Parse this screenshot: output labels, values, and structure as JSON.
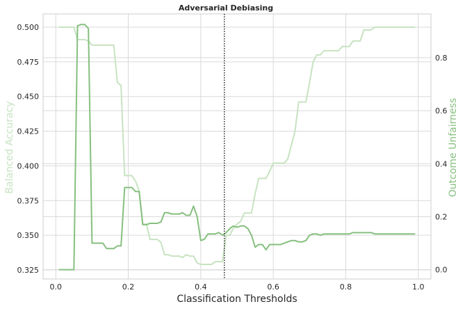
{
  "chart_data": {
    "type": "line",
    "title": "Adversarial Debiasing",
    "xlabel": "Classification Thresholds",
    "ylabel_left": "Balanced Accuracy",
    "ylabel_right": "Outcome Unfairness",
    "xlim": [
      -0.035,
      1.035
    ],
    "ylim_left": [
      0.3185,
      0.5095
    ],
    "ylim_right": [
      -0.035,
      0.965
    ],
    "xticks": [
      0.0,
      0.2,
      0.4,
      0.6,
      0.8,
      1.0
    ],
    "xtick_labels": [
      "0.0",
      "0.2",
      "0.4",
      "0.6",
      "0.8",
      "1.0"
    ],
    "yticks_left": [
      0.325,
      0.35,
      0.375,
      0.4,
      0.425,
      0.45,
      0.475,
      0.5
    ],
    "ytick_labels_left": [
      "0.325",
      "0.350",
      "0.375",
      "0.400",
      "0.425",
      "0.450",
      "0.475",
      "0.500"
    ],
    "yticks_right": [
      0.0,
      0.2,
      0.4,
      0.6,
      0.8
    ],
    "ytick_labels_right": [
      "0.0",
      "0.2",
      "0.4",
      "0.6",
      "0.8"
    ],
    "grid": true,
    "threshold_marker": 0.465,
    "colors": {
      "balanced_accuracy": "#c7e3c1",
      "outcome_unfairness": "#86bf7f",
      "marker": "#262626",
      "grid": "#d9d9d9",
      "frame": "#cccccc",
      "text": "#262626"
    },
    "series": [
      {
        "axis": "left",
        "x": [
          0.01,
          0.02,
          0.03,
          0.04,
          0.05,
          0.06,
          0.07,
          0.08,
          0.09,
          0.1,
          0.11,
          0.12,
          0.13,
          0.14,
          0.15,
          0.16,
          0.17,
          0.18,
          0.19,
          0.2,
          0.21,
          0.22,
          0.23,
          0.24,
          0.25,
          0.26,
          0.27,
          0.28,
          0.29,
          0.3,
          0.31,
          0.32,
          0.33,
          0.34,
          0.35,
          0.36,
          0.37,
          0.38,
          0.39,
          0.4,
          0.41,
          0.42,
          0.43,
          0.44,
          0.45,
          0.46,
          0.47,
          0.48,
          0.49,
          0.5,
          0.51,
          0.52,
          0.53,
          0.54,
          0.55,
          0.56,
          0.57,
          0.58,
          0.59,
          0.6,
          0.61,
          0.62,
          0.63,
          0.64,
          0.65,
          0.66,
          0.67,
          0.68,
          0.69,
          0.7,
          0.71,
          0.72,
          0.73,
          0.74,
          0.75,
          0.76,
          0.77,
          0.78,
          0.79,
          0.8,
          0.81,
          0.82,
          0.83,
          0.84,
          0.85,
          0.86,
          0.87,
          0.88,
          0.89,
          0.9,
          0.91,
          0.92,
          0.93,
          0.94,
          0.95,
          0.96,
          0.97,
          0.98,
          0.99
        ],
        "values": [
          0.5,
          0.5,
          0.5,
          0.5,
          0.5,
          0.491,
          0.491,
          0.491,
          0.49,
          0.487,
          0.487,
          0.487,
          0.487,
          0.487,
          0.487,
          0.487,
          0.46,
          0.458,
          0.393,
          0.393,
          0.393,
          0.389,
          0.382,
          0.358,
          0.358,
          0.347,
          0.347,
          0.347,
          0.345,
          0.336,
          0.336,
          0.335,
          0.335,
          0.335,
          0.334,
          0.336,
          0.335,
          0.335,
          0.33,
          0.329,
          0.329,
          0.329,
          0.329,
          0.331,
          0.331,
          0.331,
          0.35,
          0.35,
          0.355,
          0.358,
          0.36,
          0.366,
          0.366,
          0.366,
          0.38,
          0.391,
          0.391,
          0.391,
          0.396,
          0.402,
          0.402,
          0.402,
          0.402,
          0.405,
          0.415,
          0.425,
          0.446,
          0.446,
          0.446,
          0.46,
          0.475,
          0.48,
          0.48,
          0.483,
          0.483,
          0.483,
          0.483,
          0.483,
          0.486,
          0.486,
          0.486,
          0.49,
          0.49,
          0.49,
          0.498,
          0.498,
          0.498,
          0.5,
          0.5,
          0.5,
          0.5,
          0.5,
          0.5,
          0.5,
          0.5,
          0.5,
          0.5,
          0.5,
          0.5
        ]
      },
      {
        "axis": "right",
        "x": [
          0.01,
          0.02,
          0.03,
          0.04,
          0.05,
          0.06,
          0.07,
          0.08,
          0.09,
          0.1,
          0.11,
          0.12,
          0.13,
          0.14,
          0.15,
          0.16,
          0.17,
          0.18,
          0.19,
          0.2,
          0.21,
          0.22,
          0.23,
          0.24,
          0.25,
          0.26,
          0.27,
          0.28,
          0.29,
          0.3,
          0.31,
          0.32,
          0.33,
          0.34,
          0.35,
          0.36,
          0.37,
          0.38,
          0.39,
          0.4,
          0.41,
          0.42,
          0.43,
          0.44,
          0.45,
          0.46,
          0.47,
          0.48,
          0.49,
          0.5,
          0.51,
          0.52,
          0.53,
          0.54,
          0.55,
          0.56,
          0.57,
          0.58,
          0.59,
          0.6,
          0.61,
          0.62,
          0.63,
          0.64,
          0.65,
          0.66,
          0.67,
          0.68,
          0.69,
          0.7,
          0.71,
          0.72,
          0.73,
          0.74,
          0.75,
          0.76,
          0.77,
          0.78,
          0.79,
          0.8,
          0.81,
          0.82,
          0.83,
          0.84,
          0.85,
          0.86,
          0.87,
          0.88,
          0.89,
          0.9,
          0.91,
          0.92,
          0.93,
          0.94,
          0.95,
          0.96,
          0.97,
          0.98,
          0.99
        ],
        "values": [
          0.0,
          0.0,
          0.0,
          0.0,
          0.0,
          0.92,
          0.925,
          0.925,
          0.91,
          0.1,
          0.1,
          0.1,
          0.1,
          0.08,
          0.08,
          0.08,
          0.09,
          0.09,
          0.31,
          0.31,
          0.31,
          0.295,
          0.295,
          0.17,
          0.17,
          0.175,
          0.175,
          0.175,
          0.18,
          0.215,
          0.215,
          0.21,
          0.21,
          0.21,
          0.215,
          0.205,
          0.205,
          0.24,
          0.2,
          0.11,
          0.115,
          0.135,
          0.135,
          0.135,
          0.14,
          0.13,
          0.14,
          0.155,
          0.165,
          0.16,
          0.165,
          0.165,
          0.155,
          0.13,
          0.085,
          0.095,
          0.095,
          0.075,
          0.095,
          0.095,
          0.095,
          0.095,
          0.1,
          0.105,
          0.11,
          0.11,
          0.105,
          0.105,
          0.11,
          0.13,
          0.135,
          0.135,
          0.13,
          0.135,
          0.135,
          0.135,
          0.135,
          0.135,
          0.135,
          0.135,
          0.135,
          0.14,
          0.14,
          0.14,
          0.14,
          0.14,
          0.14,
          0.135,
          0.135,
          0.135,
          0.135,
          0.135,
          0.135,
          0.135,
          0.135,
          0.135,
          0.135,
          0.135,
          0.135
        ]
      }
    ]
  }
}
